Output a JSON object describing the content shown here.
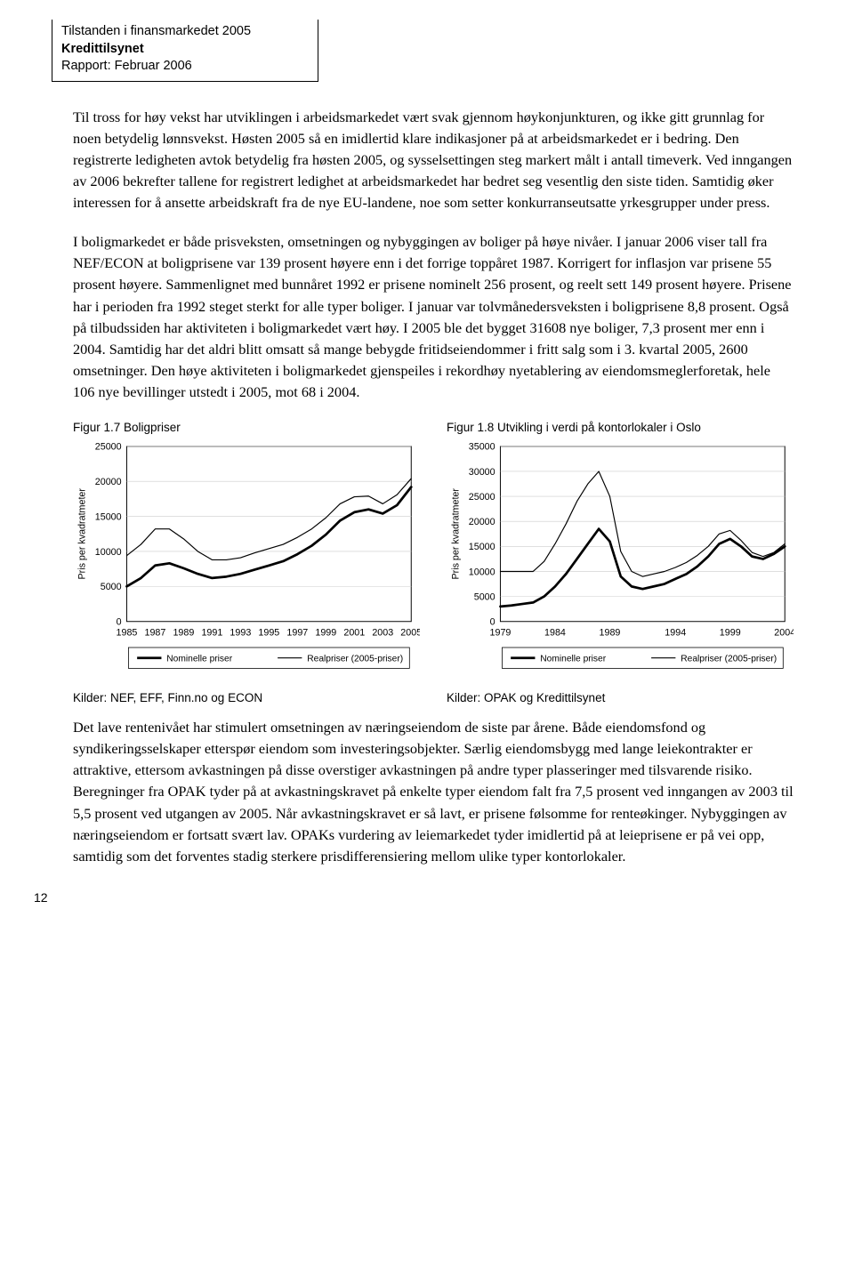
{
  "header": {
    "line1": "Tilstanden i finansmarkedet 2005",
    "line2": "Kredittilsynet",
    "line3": "Rapport: Februar 2006"
  },
  "paragraphs": {
    "p1": "Til tross for høy vekst har utviklingen i arbeidsmarkedet vært svak gjennom høykonjunkturen, og ikke gitt grunnlag for noen betydelig lønnsvekst. Høsten 2005 så en imidlertid klare indikasjoner på at arbeidsmarkedet er i bedring. Den registrerte ledigheten avtok betydelig fra høsten 2005, og sysselsettingen steg markert målt i antall timeverk. Ved inngangen av 2006 bekrefter tallene for registrert ledighet at arbeidsmarkedet har bedret seg vesentlig den siste tiden. Samtidig øker interessen for å ansette arbeidskraft fra de nye EU-landene, noe som setter konkurranseutsatte yrkesgrupper under press.",
    "p2": "I boligmarkedet er både prisveksten, omsetningen og nybyggingen av boliger på høye nivåer. I januar 2006 viser tall fra NEF/ECON at boligprisene var 139 prosent høyere enn i det forrige toppåret 1987. Korrigert for inflasjon var prisene 55 prosent høyere. Sammenlignet med bunnåret 1992 er prisene nominelt 256 prosent, og reelt sett 149 prosent høyere. Prisene har i perioden fra 1992 steget sterkt for alle typer boliger. I januar var tolvmånedersveksten i boligprisene 8,8 prosent. Også på tilbudssiden har aktiviteten i boligmarkedet vært høy. I 2005 ble det bygget 31608 nye boliger, 7,3 prosent mer enn i 2004. Samtidig har det aldri blitt omsatt så mange bebygde fritidseiendommer i fritt salg som i 3. kvartal 2005, 2600 omsetninger. Den høye aktiviteten i boligmarkedet gjenspeiles i rekordhøy nyetablering av eiendomsmeglerforetak, hele 106 nye bevillinger utstedt i 2005, mot 68 i 2004.",
    "p3": "Det lave rentenivået har stimulert omsetningen av næringseiendom de siste par årene. Både eiendomsfond og syndikeringsselskaper etterspør eiendom som investeringsobjekter. Særlig eiendomsbygg med lange leiekontrakter er attraktive, ettersom avkastningen på disse overstiger avkastningen på andre typer plasseringer med tilsvarende risiko. Beregninger fra OPAK tyder på at avkastningskravet på enkelte typer eiendom falt fra 7,5 prosent ved inngangen av 2003 til 5,5 prosent ved utgangen av 2005. Når avkastningskravet er så lavt, er prisene følsomme for renteøkinger. Nybyggingen av næringseiendom er fortsatt svært lav. OPAKs vurdering av leiemarkedet tyder imidlertid på at leieprisene er på vei opp, samtidig som det forventes stadig sterkere prisdifferensiering mellom ulike typer kontorlokaler."
  },
  "chart1": {
    "type": "line",
    "title": "Figur 1.7 Boligpriser",
    "ylabel": "Pris per kvadratmeter",
    "ylim": [
      0,
      25000
    ],
    "ytick_step": 5000,
    "yticks": [
      "0",
      "5000",
      "10000",
      "15000",
      "20000",
      "25000"
    ],
    "xticks": [
      "1985",
      "1987",
      "1989",
      "1991",
      "1993",
      "1995",
      "1997",
      "1999",
      "2001",
      "2003",
      "2005"
    ],
    "background_color": "#ffffff",
    "border_color": "#000000",
    "series": [
      {
        "name": "Nominelle priser",
        "color": "#000000",
        "line_width": 2.8,
        "values": [
          5000,
          6200,
          8000,
          8300,
          7600,
          6800,
          6200,
          6400,
          6800,
          7400,
          8000,
          8600,
          9600,
          10800,
          12400,
          14400,
          15600,
          16000,
          15400,
          16600,
          19200
        ]
      },
      {
        "name": "Realpriser (2005-priser)",
        "color": "#000000",
        "line_width": 1.2,
        "values": [
          9400,
          11000,
          13200,
          13200,
          11800,
          10000,
          8800,
          8800,
          9100,
          9800,
          10400,
          11000,
          12000,
          13200,
          14800,
          16800,
          17800,
          17900,
          16800,
          18100,
          20400
        ]
      }
    ],
    "legend": [
      "Nominelle priser",
      "Realpriser (2005-priser)"
    ],
    "source": "Kilder: NEF, EFF, Finn.no og ECON"
  },
  "chart2": {
    "type": "line",
    "title": "Figur 1.8 Utvikling i verdi på kontorlokaler i Oslo",
    "ylabel": "Pris per kvadratmeter",
    "ylim": [
      0,
      35000
    ],
    "ytick_step": 5000,
    "yticks": [
      "0",
      "5000",
      "10000",
      "15000",
      "20000",
      "25000",
      "30000",
      "35000"
    ],
    "xticks": [
      "1979",
      "1984",
      "1989",
      "1994",
      "1999",
      "2004"
    ],
    "background_color": "#ffffff",
    "border_color": "#000000",
    "series": [
      {
        "name": "Nominelle priser",
        "color": "#000000",
        "line_width": 2.8,
        "values": [
          3000,
          3200,
          3500,
          3800,
          5000,
          7000,
          9500,
          12500,
          15500,
          18500,
          16000,
          9000,
          7000,
          6500,
          7000,
          7500,
          8500,
          9500,
          11000,
          13000,
          15500,
          16500,
          15000,
          13000,
          12500,
          13500,
          15000
        ]
      },
      {
        "name": "Realpriser (2005-priser)",
        "color": "#000000",
        "line_width": 1.2,
        "values": [
          10000,
          10000,
          10000,
          10000,
          12000,
          15500,
          19500,
          24000,
          27500,
          30000,
          25000,
          14000,
          10000,
          9000,
          9500,
          10000,
          10800,
          11800,
          13200,
          15000,
          17500,
          18200,
          16200,
          13800,
          13000,
          13800,
          15500
        ]
      }
    ],
    "legend": [
      "Nominelle priser",
      "Realpriser (2005-priser)"
    ],
    "source": "Kilder: OPAK og Kredittilsynet"
  },
  "page_number": "12"
}
